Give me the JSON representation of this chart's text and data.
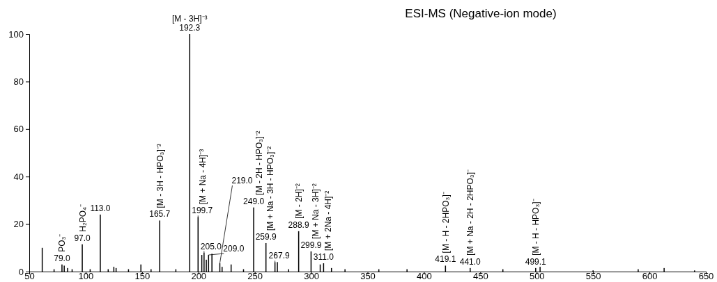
{
  "chart_data": {
    "type": "bar",
    "title": "ESI-MS (Negative-ion mode)",
    "x": [
      61.5,
      72,
      79,
      81,
      84,
      88,
      97,
      104,
      113,
      120,
      125,
      127,
      138,
      149,
      158,
      165.7,
      180,
      192.3,
      199.7,
      203,
      205,
      207,
      209,
      212,
      219,
      221,
      229,
      240,
      249,
      259.9,
      267.9,
      270,
      280,
      288.9,
      299.9,
      308,
      311,
      318,
      330,
      360,
      385,
      419.1,
      441,
      470,
      499.1,
      503,
      550,
      590,
      613,
      640
    ],
    "series": [
      {
        "color": "#000000",
        "values": [
          10,
          1,
          3,
          2.5,
          1.5,
          1,
          11.5,
          1,
          24,
          1,
          2,
          1.5,
          1,
          3,
          1,
          21.5,
          1,
          100,
          23,
          7,
          8,
          5,
          7,
          7.5,
          3.5,
          2,
          3,
          1,
          27,
          12,
          4,
          4,
          1,
          17,
          8.5,
          3,
          3.5,
          1.5,
          1,
          1,
          1,
          2.5,
          1.5,
          1,
          1.5,
          2,
          0.5,
          1,
          1.5,
          0.5
        ]
      }
    ],
    "xlim": [
      50,
      650
    ],
    "xticks": [
      50,
      100,
      150,
      200,
      250,
      300,
      350,
      400,
      450,
      500,
      550,
      600,
      650
    ],
    "ylim": [
      0,
      100
    ],
    "yticks": [
      0,
      20,
      40,
      60,
      80,
      100
    ],
    "annotations": [
      {
        "text": "79.0",
        "x": 79,
        "y": 3
      },
      {
        "text": "97.0",
        "x": 97,
        "y": 11.5
      },
      {
        "text": "113.0",
        "x": 113,
        "y": 24
      },
      {
        "text": "165.7",
        "x": 165.7,
        "y": 21.5
      },
      {
        "text": "192.3",
        "x": 192.3,
        "y": 100
      },
      {
        "text": "199.7",
        "x": 199.7,
        "y": 23
      },
      {
        "text": "205.0",
        "x": 205,
        "y": 8
      },
      {
        "text": "209.0",
        "x": 209,
        "y": 7
      },
      {
        "text": "219.0",
        "x": 219,
        "y": 3.5
      },
      {
        "text": "249.0",
        "x": 249,
        "y": 27
      },
      {
        "text": "259.9",
        "x": 259.9,
        "y": 12
      },
      {
        "text": "267.9",
        "x": 267.9,
        "y": 4
      },
      {
        "text": "288.9",
        "x": 288.9,
        "y": 17
      },
      {
        "text": "299.9",
        "x": 299.9,
        "y": 8.5
      },
      {
        "text": "311.0",
        "x": 311,
        "y": 3.5
      },
      {
        "text": "419.1",
        "x": 419.1,
        "y": 2.5
      },
      {
        "text": "441.0",
        "x": 441,
        "y": 1.5
      },
      {
        "text": "499.1",
        "x": 499.1,
        "y": 1.5
      },
      {
        "text": "PO₃⁻",
        "x": 79,
        "y": 3
      },
      {
        "text": "H₂PO₄⁻",
        "x": 97,
        "y": 11.5
      },
      {
        "text": "[M - 3H - HPO₃]⁻³",
        "x": 165.7,
        "y": 21.5
      },
      {
        "text": "[M - 3H]⁻³",
        "x": 192.3,
        "y": 100
      },
      {
        "text": "[M + Na - 4H]⁻³",
        "x": 199.7,
        "y": 23
      },
      {
        "text": "[M - 2H - HPO₃]⁻²",
        "x": 249,
        "y": 27
      },
      {
        "text": "[M + Na - 3H - HPO₃]⁻²",
        "x": 259.9,
        "y": 12
      },
      {
        "text": "[M - 2H]⁻²",
        "x": 288.9,
        "y": 17
      },
      {
        "text": "[M + Na - 3H]⁻²",
        "x": 299.9,
        "y": 8.5
      },
      {
        "text": "[M + 2Na - 4H]⁻²",
        "x": 311,
        "y": 3.5
      },
      {
        "text": "[M - H - 2HPO₃]⁻",
        "x": 419.1,
        "y": 2.5
      },
      {
        "text": "[M + Na - 2H - 2HPO₃]⁻",
        "x": 441,
        "y": 1.5
      },
      {
        "text": "[M - H - HPO₃]⁻",
        "x": 499.1,
        "y": 1.5
      }
    ]
  }
}
